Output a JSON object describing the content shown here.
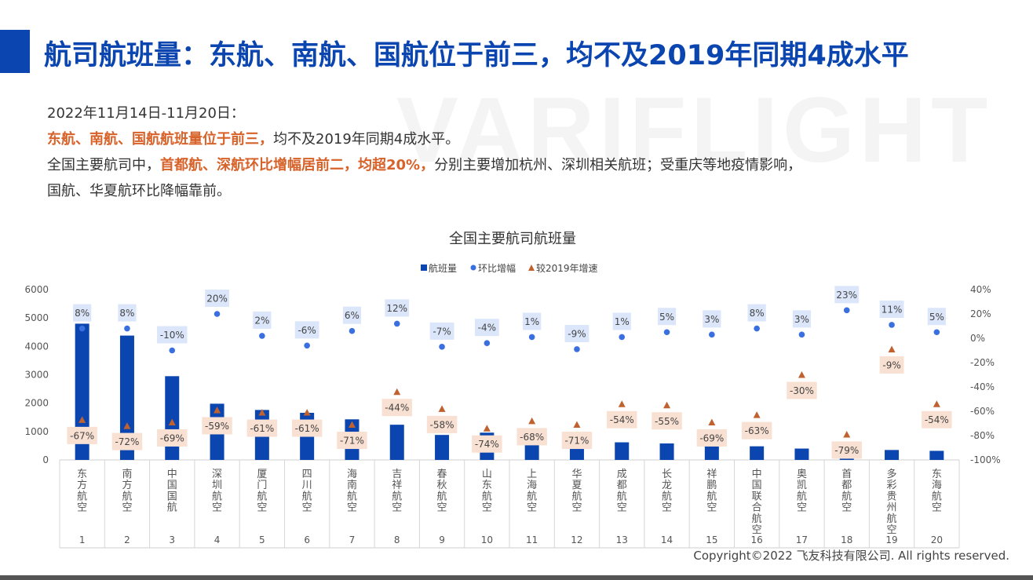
{
  "header": {
    "title": "航司航班量：东航、南航、国航位于前三，均不及2019年同期4成水平",
    "watermark": "VARIFLIGHT"
  },
  "summary": {
    "date_line": "2022年11月14日-11月20日：",
    "line2_highlight": "东航、南航、国航航班量位于前三，",
    "line2_rest": "均不及2019年同期4成水平。",
    "line3_pre": "全国主要航司中，",
    "line3_highlight": "首都航、深航环比增幅居前二，均超20%，",
    "line3_rest": "分别主要增加杭州、深圳相关航班；受重庆等地疫情影响，",
    "line4": "国航、华夏航环比降幅靠前。"
  },
  "footer": {
    "copyright": "Copyright©2022 飞友科技有限公司. All rights reserved."
  },
  "colors": {
    "bar": "#0b45b0",
    "dot": "#3a6fe0",
    "triangle": "#c0622f",
    "dot_label_bg": "#dbe6fb",
    "tri_label_bg": "#f8e0d2",
    "accent": "#0b45b0",
    "highlight": "#d7622a"
  },
  "chart_data": {
    "type": "bar",
    "title": "全国主要航司航班量",
    "legend": [
      "航班量",
      "环比增幅",
      "较2019年增速"
    ],
    "legend_position": "top",
    "categories": [
      "东方航空",
      "南方航空",
      "中国国航",
      "深圳航空",
      "厦门航空",
      "四川航空",
      "海南航空",
      "吉祥航空",
      "春秋航空",
      "山东航空",
      "上海航空",
      "华夏航空",
      "成都航空",
      "长龙航空",
      "祥鹏航空",
      "中国联合航空",
      "奥凯航空",
      "首都航空",
      "多彩贵州航空",
      "东海航空"
    ],
    "ranks": [
      "1",
      "2",
      "3",
      "4",
      "5",
      "6",
      "7",
      "8",
      "9",
      "10",
      "11",
      "12",
      "13",
      "14",
      "15",
      "16",
      "17",
      "18",
      "19",
      "20"
    ],
    "series": [
      {
        "name": "航班量",
        "type": "bar",
        "axis": "left",
        "values": [
          4800,
          4380,
          2950,
          1980,
          1760,
          1660,
          1430,
          1240,
          880,
          960,
          760,
          700,
          620,
          580,
          560,
          480,
          400,
          400,
          350,
          320
        ]
      },
      {
        "name": "环比增幅",
        "type": "scatter",
        "axis": "right",
        "values": [
          8,
          8,
          -10,
          20,
          2,
          -6,
          6,
          12,
          -7,
          -4,
          1,
          -9,
          1,
          5,
          3,
          8,
          3,
          23,
          11,
          5
        ],
        "labels": [
          "8%",
          "8%",
          "-10%",
          "20%",
          "2%",
          "-6%",
          "6%",
          "12%",
          "-7%",
          "-4%",
          "1%",
          "-9%",
          "1%",
          "5%",
          "3%",
          "8%",
          "3%",
          "23%",
          "11%",
          "5%"
        ]
      },
      {
        "name": "较2019年增速",
        "type": "scatter",
        "axis": "right",
        "values": [
          -67,
          -72,
          -69,
          -59,
          -61,
          -61,
          -71,
          -44,
          -58,
          -74,
          -68,
          -71,
          -54,
          -55,
          -69,
          -63,
          -30,
          -79,
          -9,
          -54
        ],
        "labels": [
          "-67%",
          "-72%",
          "-69%",
          "-59%",
          "-61%",
          "-61%",
          "-71%",
          "-44%",
          "-58%",
          "-74%",
          "-68%",
          "-71%",
          "-54%",
          "-55%",
          "-69%",
          "-63%",
          "-30%",
          "-79%",
          "-9%",
          "-54%"
        ]
      }
    ],
    "y_left": {
      "min": 0,
      "max": 6000,
      "ticks": [
        "0",
        "1000",
        "2000",
        "3000",
        "4000",
        "5000",
        "6000"
      ]
    },
    "y_right": {
      "min": -100,
      "max": 40,
      "ticks": [
        "-100%",
        "-80%",
        "-60%",
        "-40%",
        "-20%",
        "0%",
        "20%",
        "40%"
      ]
    },
    "grid": false
  }
}
